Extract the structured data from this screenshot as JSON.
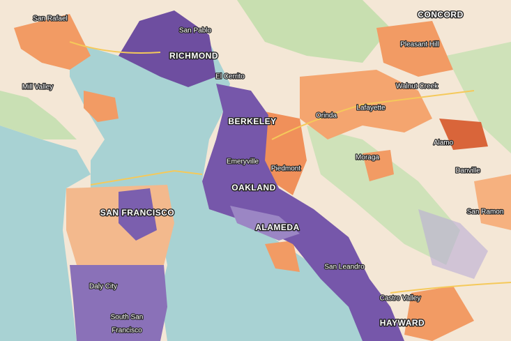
{
  "labels": [
    "San Rafael",
    "San Pablo",
    "CONCORD",
    "RICHMOND",
    "Pleasant Hill",
    "Mill Valley",
    "El Cerrito",
    "Walnut Creek",
    "Orinda",
    "Lafayette",
    "BERKELEY",
    "Alamo",
    "Emeryville",
    "Piedmont",
    "Moraga",
    "Danville",
    "OAKLAND",
    "SAN FRANCISCO",
    "San Ramon",
    "ALAMEDA",
    "San Leandro",
    "Daly City",
    "Castro Valley",
    "HAYWARD",
    "South San",
    "Francisco"
  ]
}
